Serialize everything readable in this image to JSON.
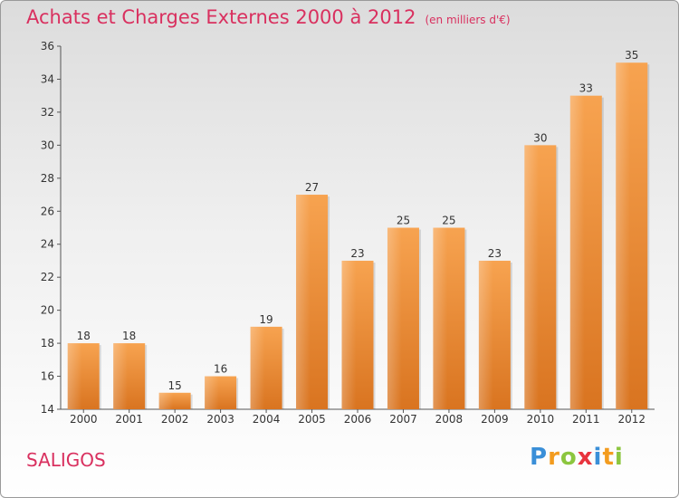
{
  "chart_data": {
    "type": "bar",
    "title": "Achats et Charges Externes 2000 à 2012",
    "subtitle": "(en milliers d'€)",
    "categories": [
      "2000",
      "2001",
      "2002",
      "2003",
      "2004",
      "2005",
      "2006",
      "2007",
      "2008",
      "2009",
      "2010",
      "2011",
      "2012"
    ],
    "values": [
      18,
      18,
      15,
      16,
      19,
      27,
      23,
      25,
      25,
      23,
      30,
      33,
      35
    ],
    "ylim": [
      14,
      36
    ],
    "yticks": [
      14,
      16,
      18,
      20,
      22,
      24,
      26,
      28,
      30,
      32,
      34,
      36
    ],
    "grid": false,
    "bar_color": "#f0923a"
  },
  "commune": "SALIGOS",
  "logo": {
    "letters": [
      "P",
      "r",
      "o",
      "x",
      "i",
      "t",
      "i"
    ],
    "colors": [
      "#3a8fd8",
      "#f39c1f",
      "#8cc63f",
      "#e8343e",
      "#3a8fd8",
      "#f39c1f",
      "#8cc63f"
    ]
  }
}
